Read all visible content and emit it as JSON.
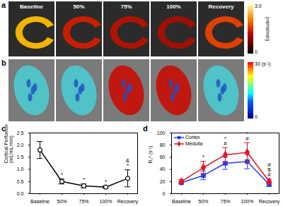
{
  "figure_panels": [
    {
      "label": "a",
      "columns": [
        "Baseline",
        "50%",
        "75%",
        "100%",
        "Recovery"
      ],
      "colorbar": {
        "range": [
          0,
          3.0
        ],
        "ticks": [
          {
            "value": 0,
            "label": "0"
          },
          {
            "value": 3,
            "label": "3.0"
          }
        ],
        "unit": "(ml/ml/min)"
      }
    },
    {
      "label": "b",
      "colorbar": {
        "range": [
          0,
          30
        ],
        "ticks": [
          0,
          30
        ],
        "unit": "(s⁻¹)"
      }
    }
  ],
  "chart_data": [
    {
      "panel_label": "c",
      "type": "line",
      "categories": [
        "Baseline",
        "50%",
        "75%",
        "100%",
        "Recovery"
      ],
      "values": [
        1.8,
        0.5,
        0.32,
        0.27,
        0.63
      ],
      "errors": [
        0.35,
        0.1,
        0.08,
        0.05,
        0.35
      ],
      "color": "#000000",
      "marker": "circle",
      "ylabel": "Cortical Perfusion (mL/mL/min)",
      "ylim": [
        0,
        2.5
      ],
      "yticks": [
        {
          "value": 0,
          "label": "0.0"
        },
        {
          "value": 0.5,
          "label": "0.5"
        },
        {
          "value": 1,
          "label": "1.0"
        },
        {
          "value": 1.5,
          "label": "1.5"
        },
        {
          "value": 2,
          "label": "2.0"
        },
        {
          "value": 2.5,
          "label": "2.5"
        }
      ],
      "annotations": [
        {
          "category": "50%",
          "text": "*"
        },
        {
          "category": "75%",
          "text": "*"
        },
        {
          "category": "100%",
          "text": "*"
        },
        {
          "category": "Recovery",
          "text": "*"
        },
        {
          "category": "Recovery",
          "text": "&"
        }
      ]
    },
    {
      "panel_label": "d",
      "type": "line",
      "categories": [
        "Baseline",
        "50%",
        "75%",
        "100%",
        "Recovery"
      ],
      "series": [
        {
          "name": "Cortex",
          "color": "#1f3fff",
          "marker": "square",
          "values": [
            18,
            30,
            50,
            53,
            15
          ],
          "errors": [
            2,
            7,
            10,
            12,
            3
          ]
        },
        {
          "name": "Medulla",
          "color": "#e8141e",
          "marker": "diamond",
          "values": [
            20,
            43,
            64,
            68,
            20
          ],
          "errors": [
            3,
            10,
            12,
            16,
            4
          ]
        }
      ],
      "ylabel": "R₂* (s⁻¹)",
      "ylim": [
        0,
        100
      ],
      "yticks": [
        0,
        20,
        40,
        60,
        80,
        100
      ],
      "legend": "upper left",
      "annotations": [
        {
          "category": "50%",
          "text": "*"
        },
        {
          "category": "75%",
          "text": "#"
        },
        {
          "category": "75%",
          "text": "*"
        },
        {
          "category": "100%",
          "text": "#"
        },
        {
          "category": "100%",
          "text": "*"
        },
        {
          "category": "Recovery",
          "text": "#"
        },
        {
          "category": "Recovery",
          "text": "$"
        },
        {
          "category": "Recovery",
          "text": "#"
        }
      ]
    }
  ]
}
